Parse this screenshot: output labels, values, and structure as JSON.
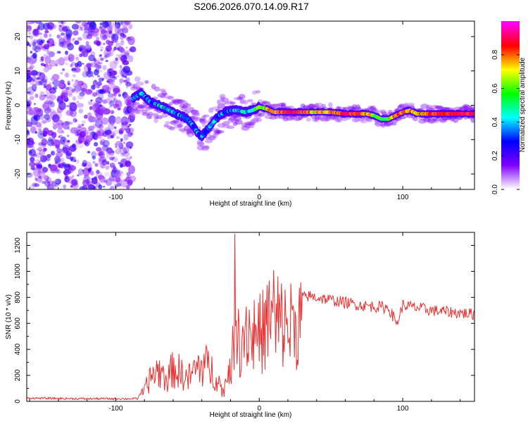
{
  "title": "S206.2026.070.14.09.R17",
  "colorbar": {
    "label": "Normalized spectral amplitude",
    "ticks": [
      "0.0",
      "0.2",
      "0.4",
      "0.6",
      "0.8"
    ],
    "tick_values": [
      0.0,
      0.2,
      0.4,
      0.6,
      0.8
    ],
    "range": [
      0,
      1
    ],
    "colors": [
      "#ffffff",
      "#8000ff",
      "#0000ff",
      "#00ffff",
      "#00ff00",
      "#ffff00",
      "#ff0000",
      "#ff00ff"
    ]
  },
  "chart_data": [
    {
      "type": "heatmap",
      "title": "",
      "xlabel": "Height of straight line (km)",
      "ylabel": "Frequency (Hz)",
      "xlim": [
        -162,
        150
      ],
      "ylim": [
        -24.5,
        24.5
      ],
      "xticks": [
        -100,
        0,
        100
      ],
      "yticks": [
        -20,
        -10,
        0,
        10,
        20
      ],
      "noise_region": {
        "x_range": [
          -162,
          -88
        ],
        "y_range": [
          -24.5,
          24.5
        ],
        "typical_amplitude": [
          0.05,
          0.25
        ]
      },
      "ridge": {
        "x": [
          -88,
          -82,
          -76,
          -70,
          -65,
          -60,
          -55,
          -50,
          -46,
          -43,
          -40,
          -36,
          -32,
          -28,
          -24,
          -20,
          -15,
          -10,
          -5,
          0,
          5,
          10,
          20,
          30,
          40,
          50,
          60,
          70,
          75,
          80,
          85,
          90,
          95,
          100,
          105,
          110,
          120,
          130,
          140,
          150
        ],
        "frequency": [
          2,
          3.5,
          1,
          0,
          -1,
          -2,
          -3,
          -4,
          -6,
          -8,
          -9,
          -7,
          -5,
          -3,
          -2,
          -1.5,
          -1.5,
          -2,
          -1.5,
          -0.5,
          -1,
          -2,
          -2,
          -2,
          -2,
          -2,
          -2.5,
          -2.5,
          -2.5,
          -3,
          -4,
          -4,
          -3,
          -2,
          -1.5,
          -2.5,
          -2.5,
          -2.5,
          -2.5,
          -2.5
        ],
        "amplitude": [
          0.3,
          0.35,
          0.35,
          0.4,
          0.4,
          0.4,
          0.35,
          0.35,
          0.3,
          0.3,
          0.3,
          0.3,
          0.35,
          0.35,
          0.3,
          0.35,
          0.4,
          0.4,
          0.5,
          0.6,
          0.7,
          0.8,
          0.9,
          0.9,
          0.7,
          0.8,
          0.9,
          0.85,
          0.8,
          0.6,
          0.5,
          0.6,
          0.8,
          0.85,
          0.8,
          0.7,
          0.85,
          0.9,
          0.9,
          0.9
        ]
      }
    },
    {
      "type": "line",
      "title": "",
      "xlabel": "Height of straight line (km)",
      "ylabel": "SNR (10 * v/v)",
      "xlim": [
        -162,
        150
      ],
      "ylim": [
        0,
        1300
      ],
      "xticks": [
        -100,
        0,
        100
      ],
      "yticks": [
        0,
        200,
        400,
        600,
        800,
        1000,
        1200
      ],
      "series": [
        {
          "name": "SNR",
          "color": "#e83030",
          "x": [
            -162,
            -140,
            -120,
            -100,
            -85,
            -80,
            -75,
            -70,
            -65,
            -60,
            -55,
            -50,
            -45,
            -40,
            -35,
            -30,
            -25,
            -20,
            -15,
            -12,
            -9,
            -5,
            -2,
            0,
            5,
            8,
            12,
            15,
            20,
            25,
            30,
            35,
            40,
            50,
            60,
            70,
            80,
            90,
            96,
            100,
            110,
            120,
            130,
            140,
            150
          ],
          "values": [
            25,
            22,
            20,
            20,
            20,
            100,
            250,
            300,
            210,
            310,
            280,
            210,
            300,
            350,
            330,
            250,
            80,
            400,
            560,
            620,
            750,
            620,
            700,
            640,
            720,
            850,
            650,
            750,
            720,
            760,
            800,
            810,
            800,
            780,
            760,
            740,
            730,
            720,
            600,
            740,
            720,
            700,
            690,
            680,
            670
          ],
          "peaks": {
            "x": [
              -17,
              10,
              13
            ],
            "values": [
              1290,
              1010,
              960
            ]
          }
        }
      ]
    }
  ]
}
